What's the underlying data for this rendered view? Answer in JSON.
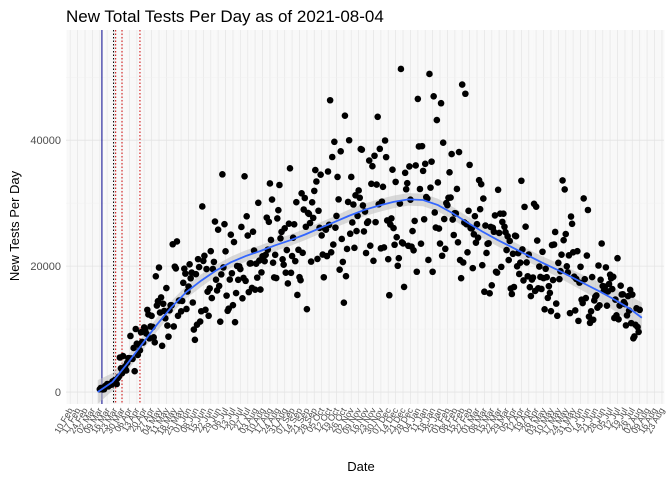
{
  "chart_data": {
    "type": "scatter",
    "title": "New Total Tests Per Day as of 2021-08-04",
    "xlabel": "Date",
    "ylabel": "New Tests Per Day",
    "xlim": [
      "2020-02-06",
      "2021-08-25"
    ],
    "ylim": [
      -1900,
      57500
    ],
    "yticks": [
      0,
      20000,
      40000
    ],
    "ytick_labels": [
      "0",
      "20000",
      "40000"
    ],
    "grid": true,
    "legend": "none",
    "x_tick_start": "2020-02-10",
    "x_tick_step_days": 7,
    "x_tick_count": 81,
    "x_tick_format": "DD Mon",
    "vlines": [
      {
        "date": "2020-03-11",
        "style": "solid",
        "color": "#00008b"
      },
      {
        "date": "2020-03-22",
        "style": "dotted",
        "color": "#000000"
      },
      {
        "date": "2020-03-24",
        "style": "dotted",
        "color": "#cc0000"
      },
      {
        "date": "2020-03-30",
        "style": "dotted",
        "color": "#cc0000"
      },
      {
        "date": "2020-04-16",
        "style": "dotted",
        "color": "#cc0000"
      }
    ],
    "smooth": {
      "color": "#3366ff",
      "band_color": "#bdbdbd",
      "x": [
        "2020-03-07",
        "2020-03-21",
        "2020-04-04",
        "2020-04-18",
        "2020-05-02",
        "2020-05-16",
        "2020-05-30",
        "2020-06-13",
        "2020-06-27",
        "2020-07-11",
        "2020-07-25",
        "2020-08-08",
        "2020-08-22",
        "2020-09-05",
        "2020-09-19",
        "2020-10-03",
        "2020-10-17",
        "2020-10-31",
        "2020-11-14",
        "2020-11-28",
        "2020-12-12",
        "2020-12-26",
        "2021-01-09",
        "2021-01-23",
        "2021-02-06",
        "2021-02-20",
        "2021-03-06",
        "2021-03-20",
        "2021-04-03",
        "2021-04-17",
        "2021-05-01",
        "2021-05-15",
        "2021-05-29",
        "2021-06-12",
        "2021-06-26",
        "2021-07-10",
        "2021-07-24",
        "2021-08-04"
      ],
      "y": [
        0,
        1600,
        4500,
        7600,
        10700,
        13500,
        15900,
        17700,
        19300,
        20600,
        21600,
        22400,
        23300,
        24100,
        25000,
        26000,
        27000,
        28000,
        28900,
        29600,
        30200,
        30600,
        30500,
        29700,
        28400,
        26900,
        25500,
        24200,
        23000,
        21800,
        20600,
        19500,
        18300,
        17100,
        15900,
        14600,
        13200,
        11800
      ],
      "lower": [
        -1900,
        200,
        3300,
        6500,
        9600,
        12500,
        14900,
        16700,
        18400,
        19700,
        20700,
        21500,
        22400,
        23200,
        24100,
        25100,
        26100,
        27000,
        27900,
        28600,
        29200,
        29600,
        29500,
        28700,
        27400,
        25900,
        24500,
        23200,
        22000,
        20800,
        19600,
        18400,
        17100,
        15800,
        14400,
        12800,
        11100,
        9400
      ],
      "upper": [
        1900,
        3000,
        5700,
        8700,
        11800,
        14500,
        16900,
        18700,
        20200,
        21500,
        22500,
        23300,
        24200,
        25000,
        25900,
        26900,
        27900,
        29000,
        29900,
        30600,
        31200,
        31600,
        31500,
        30700,
        29400,
        27900,
        26500,
        25200,
        24000,
        22800,
        21600,
        20600,
        19500,
        18400,
        17400,
        16400,
        15300,
        14200
      ]
    }
  }
}
